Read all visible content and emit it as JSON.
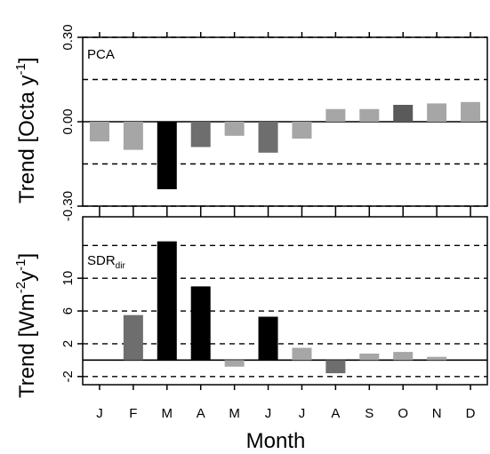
{
  "chart_data": [
    {
      "type": "bar",
      "panel_label": "PCA",
      "ylabel": "Trend [Octa y",
      "ylabel_sup": "-1",
      "ylabel_close": "]",
      "categories": [
        "J",
        "F",
        "M",
        "A",
        "M",
        "J",
        "J",
        "A",
        "S",
        "O",
        "N",
        "D"
      ],
      "values": [
        -0.07,
        -0.1,
        -0.24,
        -0.09,
        -0.05,
        -0.11,
        -0.06,
        0.045,
        0.045,
        0.06,
        0.065,
        0.07
      ],
      "bar_colors": [
        "#a6a6a6",
        "#a6a6a6",
        "#000000",
        "#6e6e6e",
        "#a6a6a6",
        "#6e6e6e",
        "#a6a6a6",
        "#a6a6a6",
        "#a6a6a6",
        "#5a5a5a",
        "#a6a6a6",
        "#a6a6a6"
      ],
      "ylim": [
        -0.3,
        0.3
      ],
      "yticks": [
        "-0.30",
        "0.00",
        "0.30"
      ],
      "ytick_values": [
        -0.3,
        0.0,
        0.3
      ],
      "grid_values": [
        -0.3,
        -0.15,
        0.15,
        0.3
      ],
      "zero_line": true
    },
    {
      "type": "bar",
      "panel_label": "SDR",
      "panel_label_sub": "dir",
      "ylabel": "Trend [Wm",
      "ylabel_sup1": "-2",
      "ylabel_mid": "y",
      "ylabel_sup2": "-1",
      "ylabel_close": "]",
      "categories": [
        "J",
        "F",
        "M",
        "A",
        "M",
        "J",
        "J",
        "A",
        "S",
        "O",
        "N",
        "D"
      ],
      "values": [
        0.0,
        5.5,
        14.5,
        9.0,
        -0.8,
        5.3,
        1.5,
        -1.6,
        0.8,
        1.0,
        0.4,
        0.0
      ],
      "bar_colors": [
        "#a6a6a6",
        "#6e6e6e",
        "#000000",
        "#000000",
        "#a6a6a6",
        "#000000",
        "#a6a6a6",
        "#6e6e6e",
        "#a6a6a6",
        "#a6a6a6",
        "#a6a6a6",
        "#a6a6a6"
      ],
      "xlabel": "Month",
      "ylim": [
        -3,
        17.5
      ],
      "yticks": [
        "-2",
        "2",
        "6",
        "10"
      ],
      "ytick_values": [
        -2,
        2,
        6,
        10
      ],
      "grid_values": [
        -2,
        2,
        6,
        10,
        14
      ],
      "zero_line": true
    }
  ]
}
